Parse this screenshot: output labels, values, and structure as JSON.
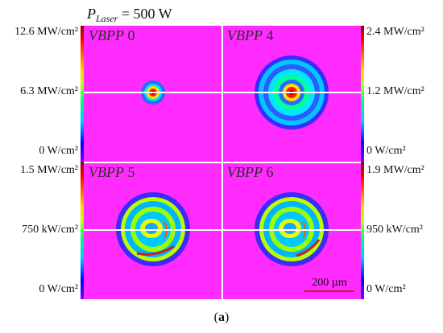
{
  "header": {
    "p": "P",
    "sub": "Laser",
    "value": " = 500 W"
  },
  "panels": [
    {
      "name": "VBPP",
      "num": " 0",
      "max": "12.6 MW/cm²",
      "mid": "6.3 MW/cm²",
      "min": "0 W/cm²"
    },
    {
      "name": "VBPP",
      "num": " 4",
      "max": "2.4 MW/cm²",
      "mid": "1.2 MW/cm²",
      "min": "0 W/cm²"
    },
    {
      "name": "VBPP",
      "num": " 5",
      "max": "1.5 MW/cm²",
      "mid": "750 kW/cm²",
      "min": "0 W/cm²"
    },
    {
      "name": "VBPP",
      "num": " 6",
      "max": "1.9 MW/cm²",
      "mid": "950 kW/cm²",
      "min": "0 W/cm²"
    }
  ],
  "scalebar": {
    "label": "200 µm"
  },
  "caption": {
    "open": "(",
    "letter": "a",
    "close": ")"
  },
  "colors": {
    "background_magenta": "#ff2bff",
    "colormap": [
      "#8b00ff",
      "#0000ff",
      "#00c0ff",
      "#00ff80",
      "#ffff00",
      "#ff8000",
      "#ff0000",
      "#8b0000"
    ],
    "scalebar": "#cc2020"
  }
}
